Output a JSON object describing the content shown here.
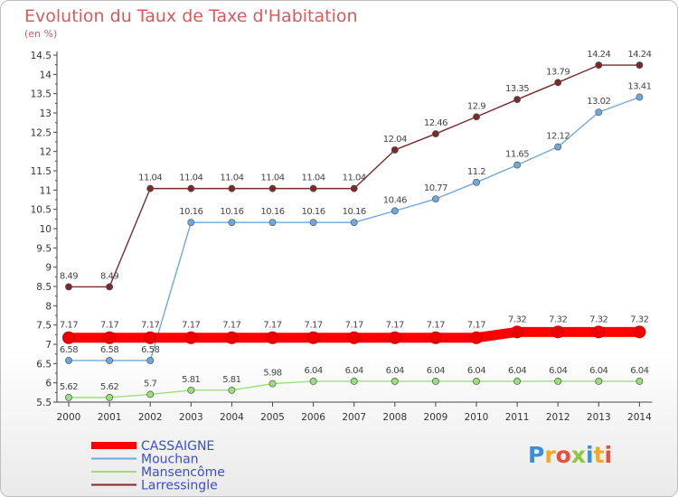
{
  "chart_data": {
    "type": "line",
    "title": "Evolution du Taux de Taxe d'Habitation",
    "ylabel": "(en %)",
    "x": [
      "2000",
      "2001",
      "2002",
      "2003",
      "2004",
      "2005",
      "2006",
      "2007",
      "2008",
      "2009",
      "2010",
      "2011",
      "2012",
      "2013",
      "2014"
    ],
    "yticks": [
      "5.5",
      "6",
      "6.5",
      "7",
      "7.5",
      "8",
      "8.5",
      "9",
      "9.5",
      "10",
      "10.5",
      "11",
      "11.5",
      "12",
      "12.5",
      "13",
      "13.5",
      "14",
      "14.5"
    ],
    "ylim": [
      5.5,
      14.5
    ],
    "grid": false,
    "legend": "bottom-left",
    "series": [
      {
        "name": "CASSAIGNE",
        "color": "#ff0000",
        "values": [
          7.17,
          7.17,
          7.17,
          7.17,
          7.17,
          7.17,
          7.17,
          7.17,
          7.17,
          7.17,
          7.17,
          7.32,
          7.32,
          7.32,
          7.32
        ],
        "labels": [
          "7.17",
          "7.17",
          "7.17",
          "7.17",
          "7.17",
          "7.17",
          "7.17",
          "7.17",
          "7.17",
          "7.17",
          "7.17",
          "7.32",
          "7.32",
          "7.32",
          "7.32"
        ]
      },
      {
        "name": "Mouchan",
        "color": "#6fa8dc",
        "values": [
          6.58,
          6.58,
          6.58,
          10.16,
          10.16,
          10.16,
          10.16,
          10.16,
          10.46,
          10.77,
          11.2,
          11.65,
          12.12,
          13.02,
          13.41
        ],
        "labels": [
          "6.58",
          "6.58",
          "6.58",
          "10.16",
          "10.16",
          "10.16",
          "10.16",
          "10.16",
          "10.46",
          "10.77",
          "11.2",
          "11.65",
          "12.12",
          "13.02",
          "13.41"
        ]
      },
      {
        "name": "Mansencôme",
        "color": "#99e07a",
        "values": [
          5.62,
          5.62,
          5.7,
          5.81,
          5.81,
          5.98,
          6.04,
          6.04,
          6.04,
          6.04,
          6.04,
          6.04,
          6.04,
          6.04,
          6.04
        ],
        "labels": [
          "5.62",
          "5.62",
          "5.7",
          "5.81",
          "5.81",
          "5.98",
          "6.04",
          "6.04",
          "6.04",
          "6.04",
          "6.04",
          "6.04",
          "6.04",
          "6.04",
          "6.04"
        ]
      },
      {
        "name": "Larressingle",
        "color": "#7a2a2a",
        "values": [
          8.49,
          8.49,
          11.04,
          11.04,
          11.04,
          11.04,
          11.04,
          11.04,
          12.04,
          12.46,
          12.9,
          13.35,
          13.79,
          14.24,
          14.24
        ],
        "labels": [
          "8.49",
          "8.49",
          "11.04",
          "11.04",
          "11.04",
          "11.04",
          "11.04",
          "11.04",
          "12.04",
          "12.46",
          "12.9",
          "13.35",
          "13.79",
          "14.24",
          "14.24"
        ]
      }
    ]
  },
  "logo": {
    "text": "Proxiti",
    "colors": [
      "#3b8fd6",
      "#f5a623",
      "#e84e3b",
      "#8cc63f",
      "#3b8fd6",
      "#f5a623",
      "#e84e3b"
    ]
  }
}
